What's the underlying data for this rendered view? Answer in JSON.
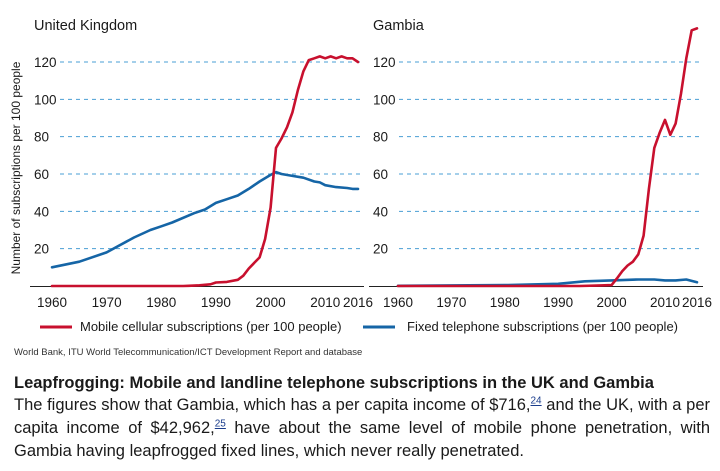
{
  "source_text": "World Bank, ITU World Telecommunication/ICT Development Report and database",
  "caption": {
    "title": "Leapfrogging: Mobile and landline telephone subscriptions in the UK and Gambia",
    "body_part1": "The figures show that Gambia, which has a per capita income of $716,",
    "footnote1": "24",
    "body_part2": " and the UK, with a per capita income of $42,962,",
    "footnote2": "25",
    "body_part3": " have about the same level of mobile phone penetration, with Gambia having leapfrogged fixed lines, which never really penetrated."
  },
  "colors": {
    "mobile": "#c8102e",
    "fixed": "#1565a6",
    "grid": "#4a9fd4",
    "axis": "#222222"
  },
  "chart_data": {
    "type": "line",
    "ylabel": "Number of subscriptions per 100 people",
    "legend": [
      {
        "label": "Mobile cellular subscriptions (per 100 people)",
        "color": "#c8102e"
      },
      {
        "label": "Fixed telephone subscriptions (per 100 people)",
        "color": "#1565a6"
      }
    ],
    "xlim": [
      1960,
      2016
    ],
    "ylim": [
      0,
      130
    ],
    "x_ticks": [
      "1960",
      "1970",
      "1980",
      "1990",
      "2000",
      "2010",
      "2016"
    ],
    "y_ticks": [
      "20",
      "40",
      "60",
      "80",
      "100",
      "120"
    ],
    "grid": "horizontal dashed",
    "panels": [
      {
        "title": "United Kingdom",
        "series": [
          {
            "name": "Mobile cellular subscriptions (per 100 people)",
            "x": [
              1960,
              1984,
              1985,
              1987,
              1989,
              1990,
              1992,
              1994,
              1995,
              1996,
              1997,
              1998,
              1999,
              2000,
              2001,
              2002,
              2003,
              2004,
              2005,
              2006,
              2007,
              2008,
              2009,
              2010,
              2011,
              2012,
              2013,
              2014,
              2015,
              2016
            ],
            "y": [
              0,
              0,
              0.1,
              0.4,
              0.9,
              1.9,
              2.2,
              3.3,
              5.5,
              9.3,
              12.4,
              15.3,
              25.2,
              42,
              74,
              79,
              85,
              93,
              105,
              115,
              121,
              122,
              123,
              122,
              123,
              122,
              123,
              122,
              122,
              120
            ]
          },
          {
            "name": "Fixed telephone subscriptions (per 100 people)",
            "x": [
              1960,
              1965,
              1970,
              1975,
              1978,
              1980,
              1982,
              1986,
              1988,
              1990,
              1992,
              1994,
              1996,
              1998,
              2000,
              2001,
              2002,
              2004,
              2006,
              2008,
              2009,
              2010,
              2012,
              2014,
              2015,
              2016
            ],
            "y": [
              10,
              13,
              18,
              26,
              30,
              32,
              34,
              39,
              41,
              44.5,
              46.5,
              48.5,
              52,
              56,
              59.5,
              61,
              60,
              59,
              58,
              56,
              55.5,
              54,
              53,
              52.5,
              52,
              52
            ]
          }
        ]
      },
      {
        "title": "Gambia",
        "series": [
          {
            "name": "Mobile cellular subscriptions (per 100 people)",
            "x": [
              1960,
              1994,
              1998,
              2000,
              2001,
              2002,
              2003,
              2004,
              2005,
              2006,
              2007,
              2008,
              2009,
              2010,
              2011,
              2012,
              2013,
              2014,
              2015,
              2016
            ],
            "y": [
              0,
              0,
              0.3,
              0.5,
              4,
              8,
              11,
              13,
              17,
              27,
              52,
              74,
              82,
              89,
              81,
              87,
              103,
              122,
              137,
              138
            ]
          },
          {
            "name": "Fixed telephone subscriptions (per 100 people)",
            "x": [
              1960,
              1970,
              1980,
              1990,
              1995,
              2000,
              2005,
              2008,
              2010,
              2012,
              2014,
              2016
            ],
            "y": [
              0.1,
              0.3,
              0.5,
              1.2,
              2.5,
              3,
              3.5,
              3.5,
              3,
              3,
              3.5,
              2
            ]
          }
        ]
      }
    ]
  }
}
